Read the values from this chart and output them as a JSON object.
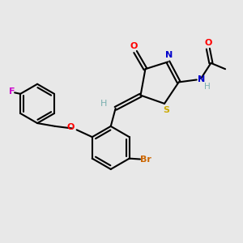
{
  "bg_color": "#e8e8e8",
  "bond_color": "#000000",
  "colors": {
    "O": "#ff0000",
    "N": "#0000cc",
    "S": "#ccaa00",
    "F": "#cc00cc",
    "Br": "#cc6600",
    "H_gray": "#7ab0b0",
    "C": "#000000"
  }
}
